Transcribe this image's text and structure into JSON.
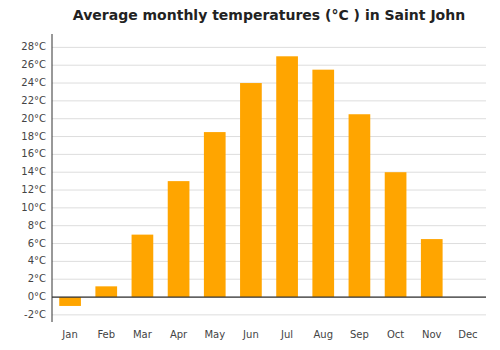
{
  "chart_data": {
    "type": "bar",
    "title": "Average monthly temperatures (°C ) in Saint John",
    "categories": [
      "Jan",
      "Feb",
      "Mar",
      "Apr",
      "May",
      "Jun",
      "Jul",
      "Aug",
      "Sep",
      "Oct",
      "Nov",
      "Dec"
    ],
    "values": [
      -1.0,
      1.2,
      7.0,
      13.0,
      18.5,
      24.0,
      27.0,
      25.5,
      20.5,
      14.0,
      6.5,
      0.0
    ],
    "color": "#FFA500",
    "ylim": [
      -2.8,
      29.5
    ],
    "yticks": [
      {
        "value": -2,
        "label": "-2°C"
      },
      {
        "value": 0,
        "label": "0°C"
      },
      {
        "value": 2,
        "label": "2°C"
      },
      {
        "value": 4,
        "label": "4°C"
      },
      {
        "value": 6,
        "label": "6°C"
      },
      {
        "value": 8,
        "label": "8°C"
      },
      {
        "value": 10,
        "label": "10°C"
      },
      {
        "value": 12,
        "label": "12°C"
      },
      {
        "value": 14,
        "label": "14°C"
      },
      {
        "value": 16,
        "label": "16°C"
      },
      {
        "value": 18,
        "label": "18°C"
      },
      {
        "value": 20,
        "label": "20°C"
      },
      {
        "value": 22,
        "label": "22°C"
      },
      {
        "value": 24,
        "label": "24°C"
      },
      {
        "value": 26,
        "label": "26°C"
      },
      {
        "value": 28,
        "label": "28°C"
      }
    ],
    "grid": true
  }
}
